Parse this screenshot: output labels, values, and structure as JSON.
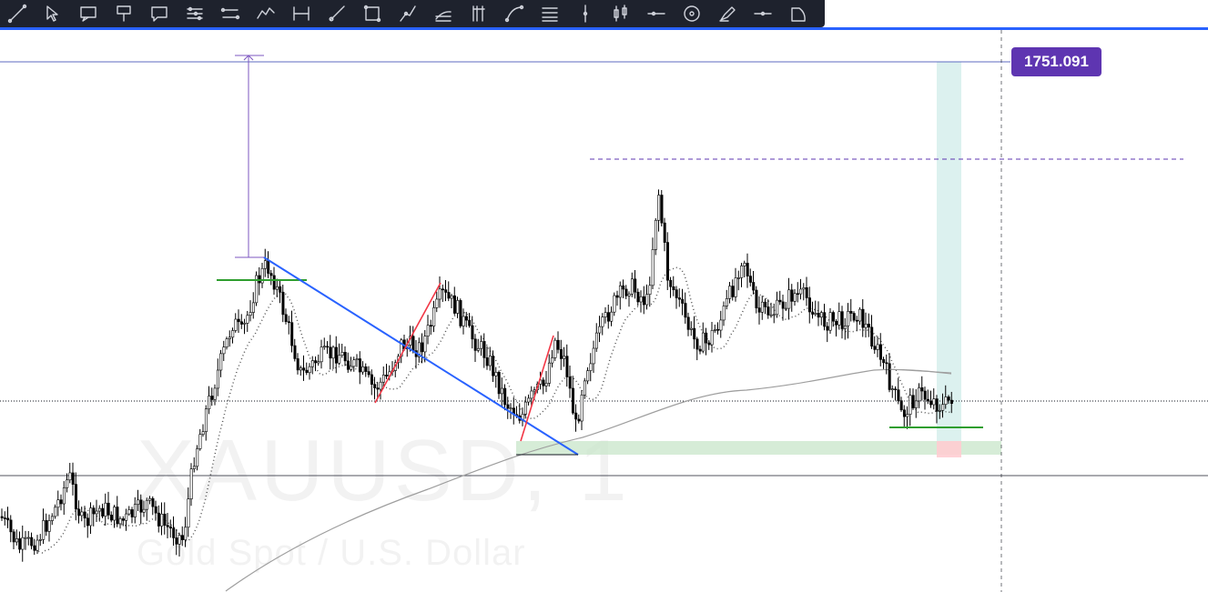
{
  "toolbar": {
    "tools": [
      {
        "name": "trend-line-icon"
      },
      {
        "name": "arrow-cursor-icon"
      },
      {
        "name": "callout-icon"
      },
      {
        "name": "price-label-icon"
      },
      {
        "name": "comment-icon"
      },
      {
        "name": "parallel-channel-icon"
      },
      {
        "name": "pitchfork-icon"
      },
      {
        "name": "elliott-wave-icon"
      },
      {
        "name": "date-range-icon"
      },
      {
        "name": "brush-icon"
      },
      {
        "name": "rectangle-icon"
      },
      {
        "name": "path-icon"
      },
      {
        "name": "fib-channel-icon"
      },
      {
        "name": "fib-timezone-icon"
      },
      {
        "name": "curve-icon"
      },
      {
        "name": "fib-retracement-icon"
      },
      {
        "name": "vertical-line-icon"
      },
      {
        "name": "candles-icon"
      },
      {
        "name": "horizontal-ray-icon"
      },
      {
        "name": "circle-target-icon"
      },
      {
        "name": "highlighter-icon"
      },
      {
        "name": "horizontal-line-icon"
      },
      {
        "name": "arc-icon"
      }
    ]
  },
  "chart": {
    "symbol": "XAUUSD, 1",
    "description": "Gold Spot / U.S. Dollar",
    "price_label": "1751.091",
    "colors": {
      "up": "#ffffff",
      "down": "#000000",
      "trendline": "#2962ff",
      "zigzag": "#f23645",
      "support": "#089981",
      "label": "#5e35b1",
      "target_zone": "#b2dfdb",
      "stop_zone": "#ffcdd2",
      "demand_zone": "#c8e6c9"
    }
  }
}
